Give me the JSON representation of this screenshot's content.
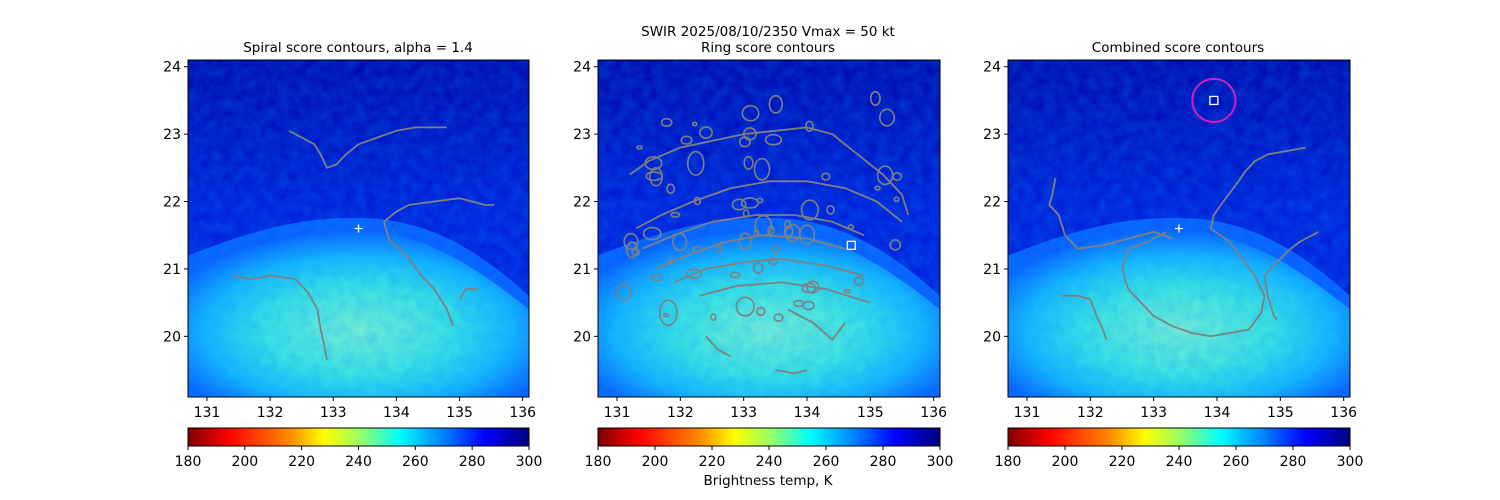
{
  "figure": {
    "suptitle_line1": "SWIR  2025/08/10/2350    Vmax = 50 kt",
    "colorbar_label": "Brightness temp, K"
  },
  "chart_data": [
    {
      "type": "heatmap",
      "title": "Spiral score contours, alpha =  1.4",
      "xlim": [
        130.7,
        136.1
      ],
      "ylim": [
        19.1,
        24.1
      ],
      "xticks": [
        131,
        132,
        133,
        134,
        135,
        136
      ],
      "yticks": [
        20,
        21,
        22,
        23,
        24
      ],
      "grid": false,
      "colormap": "jet_r",
      "colorbar": {
        "range": [
          180,
          300
        ],
        "ticks": [
          180,
          200,
          220,
          240,
          260,
          280,
          300
        ],
        "orientation": "horizontal"
      },
      "contour_color": "#808080",
      "markers": [
        {
          "shape": "plus",
          "color": "#ffffff",
          "x": 133.4,
          "y": 21.6
        }
      ],
      "contours": [
        [
          [
            132.3,
            23.05
          ],
          [
            132.5,
            22.95
          ],
          [
            132.7,
            22.85
          ],
          [
            132.8,
            22.7
          ],
          [
            132.9,
            22.5
          ],
          [
            133.05,
            22.55
          ],
          [
            133.2,
            22.7
          ],
          [
            133.4,
            22.85
          ],
          [
            133.7,
            22.95
          ],
          [
            134.0,
            23.05
          ],
          [
            134.3,
            23.1
          ],
          [
            134.8,
            23.1
          ]
        ],
        [
          [
            133.8,
            21.7
          ],
          [
            134.0,
            21.85
          ],
          [
            134.2,
            21.95
          ],
          [
            134.6,
            22.0
          ],
          [
            135.0,
            22.05
          ],
          [
            135.4,
            21.95
          ],
          [
            135.55,
            21.95
          ]
        ],
        [
          [
            133.8,
            21.7
          ],
          [
            133.9,
            21.4
          ],
          [
            134.05,
            21.3
          ],
          [
            134.2,
            21.15
          ],
          [
            134.4,
            20.9
          ],
          [
            134.6,
            20.7
          ],
          [
            134.8,
            20.4
          ],
          [
            134.9,
            20.15
          ]
        ],
        [
          [
            131.4,
            20.9
          ],
          [
            131.7,
            20.85
          ],
          [
            132.0,
            20.9
          ],
          [
            132.4,
            20.85
          ],
          [
            132.6,
            20.65
          ],
          [
            132.75,
            20.4
          ],
          [
            132.8,
            20.1
          ],
          [
            132.85,
            19.9
          ],
          [
            132.9,
            19.65
          ]
        ],
        [
          [
            135.0,
            20.55
          ],
          [
            135.1,
            20.7
          ],
          [
            135.3,
            20.7
          ]
        ]
      ]
    },
    {
      "type": "heatmap",
      "title": "Ring score contours",
      "xlim": [
        130.7,
        136.1
      ],
      "ylim": [
        19.1,
        24.1
      ],
      "xticks": [
        131,
        132,
        133,
        134,
        135,
        136
      ],
      "yticks": [
        20,
        21,
        22,
        23,
        24
      ],
      "grid": false,
      "colormap": "jet_r",
      "colorbar": {
        "range": [
          180,
          300
        ],
        "ticks": [
          180,
          200,
          220,
          240,
          260,
          280,
          300
        ],
        "orientation": "horizontal"
      },
      "contour_color": "#808080",
      "markers": [
        {
          "shape": "square",
          "color": "#ffffff",
          "x": 134.7,
          "y": 21.35
        }
      ],
      "contour_region": "dense noisy contours covering roughly x 131.0–135.7, y 19.5–23.3",
      "contours": [
        [
          [
            131.2,
            22.4
          ],
          [
            131.5,
            22.6
          ],
          [
            132.0,
            22.8
          ],
          [
            132.5,
            22.9
          ],
          [
            133.0,
            23.0
          ],
          [
            133.5,
            23.05
          ],
          [
            134.0,
            23.1
          ],
          [
            134.4,
            23.0
          ],
          [
            134.8,
            22.7
          ],
          [
            135.2,
            22.4
          ],
          [
            135.5,
            22.1
          ],
          [
            135.6,
            21.8
          ]
        ],
        [
          [
            131.3,
            21.6
          ],
          [
            131.7,
            21.8
          ],
          [
            132.2,
            22.0
          ],
          [
            132.8,
            22.2
          ],
          [
            133.4,
            22.3
          ],
          [
            134.0,
            22.3
          ],
          [
            134.6,
            22.2
          ],
          [
            135.1,
            22.0
          ],
          [
            135.5,
            21.7
          ]
        ],
        [
          [
            131.4,
            21.3
          ],
          [
            131.9,
            21.5
          ],
          [
            132.5,
            21.7
          ],
          [
            133.2,
            21.8
          ],
          [
            133.8,
            21.8
          ],
          [
            134.4,
            21.7
          ],
          [
            134.9,
            21.5
          ]
        ],
        [
          [
            131.6,
            21.0
          ],
          [
            132.1,
            21.2
          ],
          [
            132.7,
            21.4
          ],
          [
            133.3,
            21.5
          ],
          [
            134.0,
            21.45
          ],
          [
            134.6,
            21.3
          ]
        ],
        [
          [
            131.9,
            20.8
          ],
          [
            132.4,
            21.0
          ],
          [
            133.0,
            21.1
          ],
          [
            133.6,
            21.15
          ],
          [
            134.3,
            21.05
          ],
          [
            134.9,
            20.9
          ]
        ],
        [
          [
            132.3,
            20.6
          ],
          [
            132.9,
            20.75
          ],
          [
            133.6,
            20.8
          ],
          [
            134.3,
            20.7
          ],
          [
            135.0,
            20.5
          ]
        ],
        [
          [
            133.7,
            20.4
          ],
          [
            134.1,
            20.2
          ],
          [
            134.4,
            19.95
          ],
          [
            134.6,
            20.2
          ]
        ],
        [
          [
            132.4,
            20.0
          ],
          [
            132.6,
            19.8
          ],
          [
            132.8,
            19.7
          ]
        ],
        [
          [
            133.5,
            19.5
          ],
          [
            133.8,
            19.45
          ],
          [
            134.0,
            19.5
          ]
        ]
      ]
    },
    {
      "type": "heatmap",
      "title": "Combined score contours",
      "xlim": [
        130.7,
        136.1
      ],
      "ylim": [
        19.1,
        24.1
      ],
      "xticks": [
        131,
        132,
        133,
        134,
        135,
        136
      ],
      "yticks": [
        20,
        21,
        22,
        23,
        24
      ],
      "grid": false,
      "colormap": "jet_r",
      "colorbar": {
        "range": [
          180,
          300
        ],
        "ticks": [
          180,
          200,
          220,
          240,
          260,
          280,
          300
        ],
        "orientation": "horizontal"
      },
      "contour_color": "#808080",
      "markers": [
        {
          "shape": "plus",
          "color": "#ffffff",
          "x": 133.4,
          "y": 21.6
        },
        {
          "shape": "square",
          "color": "#ffffff",
          "x": 133.95,
          "y": 23.5
        },
        {
          "shape": "circle",
          "color": "#d020c0",
          "x": 133.95,
          "y": 23.5,
          "radius_deg": 0.32
        }
      ],
      "contours": [
        [
          [
            131.45,
            22.35
          ],
          [
            131.4,
            22.1
          ],
          [
            131.35,
            21.95
          ],
          [
            131.5,
            21.8
          ],
          [
            131.6,
            21.5
          ],
          [
            131.8,
            21.3
          ],
          [
            132.2,
            21.35
          ],
          [
            132.6,
            21.45
          ],
          [
            133.0,
            21.55
          ],
          [
            133.3,
            21.45
          ]
        ],
        [
          [
            133.2,
            21.55
          ],
          [
            132.9,
            21.4
          ],
          [
            132.6,
            21.3
          ],
          [
            132.5,
            21.0
          ],
          [
            132.6,
            20.7
          ],
          [
            132.8,
            20.5
          ],
          [
            133.0,
            20.3
          ],
          [
            133.3,
            20.15
          ],
          [
            133.6,
            20.05
          ],
          [
            133.9,
            20.0
          ],
          [
            134.2,
            20.05
          ],
          [
            134.5,
            20.1
          ],
          [
            134.7,
            20.35
          ],
          [
            134.75,
            20.6
          ],
          [
            134.6,
            20.9
          ],
          [
            134.4,
            21.15
          ],
          [
            134.2,
            21.4
          ],
          [
            134.05,
            21.5
          ],
          [
            133.9,
            21.6
          ],
          [
            133.95,
            21.8
          ],
          [
            134.1,
            22.0
          ],
          [
            134.3,
            22.25
          ],
          [
            134.45,
            22.45
          ],
          [
            134.6,
            22.6
          ],
          [
            134.8,
            22.7
          ],
          [
            135.1,
            22.75
          ],
          [
            135.4,
            22.8
          ]
        ],
        [
          [
            135.6,
            21.55
          ],
          [
            135.3,
            21.4
          ],
          [
            135.1,
            21.25
          ],
          [
            134.9,
            21.05
          ],
          [
            134.75,
            20.9
          ],
          [
            134.8,
            20.6
          ],
          [
            134.9,
            20.3
          ],
          [
            134.95,
            20.25
          ]
        ],
        [
          [
            131.55,
            20.6
          ],
          [
            131.8,
            20.6
          ],
          [
            132.0,
            20.55
          ],
          [
            132.1,
            20.3
          ],
          [
            132.2,
            20.1
          ],
          [
            132.25,
            19.95
          ]
        ]
      ]
    }
  ]
}
